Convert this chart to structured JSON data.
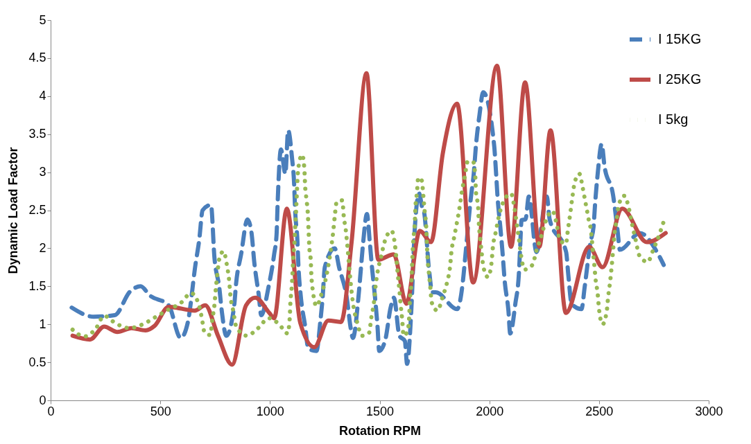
{
  "chart_data": {
    "type": "line",
    "xlabel": "Rotation RPM",
    "ylabel": "Dynamic Load Factor",
    "xlim": [
      0,
      3000
    ],
    "xticks": [
      0,
      500,
      1000,
      1500,
      2000,
      2500,
      3000
    ],
    "ylim": [
      0,
      5
    ],
    "yticks": [
      0,
      0.5,
      1,
      1.5,
      2,
      2.5,
      3,
      3.5,
      4,
      4.5,
      5
    ],
    "grid": false,
    "legend": "top right",
    "series": [
      {
        "name": "I 15KG",
        "color": "#4a7ebb",
        "line_style": "dashed",
        "x": [
          96,
          196,
          292,
          362,
          410,
          452,
          538,
          593,
          625,
          661,
          677,
          693,
          731,
          747,
          769,
          780,
          801,
          837,
          845,
          869,
          897,
          915,
          929,
          949,
          960,
          994,
          1019,
          1030,
          1035,
          1050,
          1070,
          1083,
          1100,
          1110,
          1115,
          1125,
          1130,
          1140,
          1160,
          1175,
          1212,
          1230,
          1240,
          1250,
          1295,
          1315,
          1350,
          1368,
          1378,
          1404,
          1415,
          1425,
          1442,
          1455,
          1465,
          1478,
          1490,
          1498,
          1526,
          1550,
          1565,
          1590,
          1615,
          1625,
          1644,
          1660,
          1680,
          1695,
          1702,
          1725,
          1740,
          1756,
          1853,
          1880,
          1890,
          1918,
          1928,
          1939,
          1955,
          1972,
          2022,
          2030,
          2038,
          2050,
          2060,
          2070,
          2087,
          2095,
          2119,
          2135,
          2140,
          2147,
          2165,
          2180,
          2215,
          2262,
          2275,
          2350,
          2360,
          2375,
          2420,
          2435,
          2461,
          2475,
          2482,
          2494,
          2512,
          2525,
          2564,
          2585,
          2595,
          2686,
          2770,
          2795
        ],
        "values": [
          1.22,
          1.1,
          1.12,
          1.43,
          1.5,
          1.38,
          1.25,
          0.82,
          1.02,
          1.8,
          2.1,
          2.5,
          2.57,
          1.87,
          1.48,
          1.18,
          0.85,
          1.25,
          1.52,
          1.93,
          2.38,
          2.22,
          1.8,
          1.38,
          1.12,
          1.5,
          1.92,
          2.18,
          2.6,
          3.3,
          2.98,
          3.55,
          3.2,
          2.85,
          2.48,
          2.1,
          1.75,
          1.38,
          0.98,
          0.68,
          0.65,
          1.05,
          1.35,
          1.75,
          2.0,
          1.75,
          1.35,
          0.95,
          0.82,
          1.38,
          1.75,
          2.08,
          2.45,
          2.08,
          1.75,
          1.38,
          0.98,
          0.65,
          0.8,
          1.22,
          1.35,
          0.85,
          0.78,
          0.48,
          1.17,
          2.25,
          2.72,
          2.52,
          2.48,
          1.72,
          1.42,
          1.42,
          1.2,
          1.58,
          1.88,
          2.72,
          2.95,
          3.35,
          3.75,
          4.05,
          3.35,
          3.02,
          2.65,
          2.28,
          1.95,
          1.57,
          1.18,
          0.88,
          1.28,
          1.68,
          1.98,
          2.37,
          2.38,
          2.68,
          1.95,
          2.68,
          2.38,
          1.95,
          1.65,
          1.27,
          1.2,
          1.5,
          2.08,
          2.28,
          2.58,
          2.98,
          3.37,
          3.08,
          2.7,
          2.22,
          1.98,
          2.2,
          1.92,
          1.78
        ]
      },
      {
        "name": "I 25KG",
        "color": "#be4b48",
        "line_style": "solid",
        "x": [
          100,
          180,
          244,
          304,
          369,
          433,
          474,
          538,
          657,
          705,
          763,
          827,
          891,
          933,
          997,
          1019,
          1077,
          1138,
          1202,
          1266,
          1324,
          1372,
          1440,
          1494,
          1564,
          1622,
          1683,
          1734,
          1788,
          1853,
          1926,
          2035,
          2099,
          2163,
          2228,
          2279,
          2349,
          2455,
          2516,
          2606,
          2718,
          2804
        ],
        "values": [
          0.85,
          0.8,
          0.97,
          0.9,
          0.95,
          0.92,
          0.98,
          1.23,
          1.18,
          1.25,
          0.85,
          0.47,
          1.25,
          1.35,
          1.15,
          1.08,
          2.52,
          1.02,
          0.7,
          1.05,
          1.03,
          2.08,
          4.3,
          1.85,
          1.92,
          1.27,
          2.23,
          2.08,
          3.25,
          3.9,
          1.55,
          4.4,
          2.02,
          4.18,
          2.02,
          3.55,
          1.15,
          2.02,
          1.75,
          2.52,
          2.08,
          2.2
        ]
      },
      {
        "name": "I 5kg",
        "color": "#98b954",
        "line_style": "dotted",
        "x": [
          100,
          154,
          205,
          244,
          298,
          359,
          420,
          481,
          535,
          593,
          641,
          673,
          689,
          702,
          728,
          737,
          747,
          753,
          760,
          769,
          788,
          804,
          814,
          820,
          833,
          846,
          894,
          946,
          994,
          1042,
          1080,
          1090,
          1093,
          1099,
          1103,
          1106,
          1112,
          1115,
          1119,
          1122,
          1125,
          1131,
          1147,
          1157,
          1160,
          1167,
          1173,
          1176,
          1179,
          1186,
          1189,
          1196,
          1212,
          1237,
          1256,
          1269,
          1279,
          1288,
          1295,
          1304,
          1330,
          1336,
          1346,
          1353,
          1359,
          1365,
          1372,
          1381,
          1397,
          1420,
          1452,
          1462,
          1474,
          1481,
          1490,
          1506,
          1522,
          1554,
          1570,
          1577,
          1583,
          1590,
          1596,
          1603,
          1609,
          1628,
          1635,
          1638,
          1644,
          1647,
          1650,
          1654,
          1660,
          1663,
          1670,
          1676,
          1692,
          1699,
          1705,
          1712,
          1715,
          1718,
          1724,
          1731,
          1737,
          1763,
          1788,
          1808,
          1821,
          1827,
          1840,
          1853,
          1865,
          1875,
          1888,
          1901,
          1926,
          1936,
          1939,
          1949,
          1952,
          1958,
          1965,
          1974,
          1994,
          2010,
          2016,
          2029,
          2042,
          2061,
          2099,
          2115,
          2125,
          2135,
          2144,
          2160,
          2196,
          2215,
          2237,
          2256,
          2288,
          2308,
          2321,
          2349,
          2359,
          2369,
          2378,
          2388,
          2410,
          2426,
          2439,
          2452,
          2465,
          2471,
          2478,
          2484,
          2494,
          2500,
          2516,
          2535,
          2542,
          2551,
          2558,
          2564,
          2570,
          2580,
          2590,
          2615,
          2638,
          2651,
          2667,
          2683,
          2721,
          2750,
          2776,
          2798
        ],
        "values": [
          0.93,
          0.84,
          0.94,
          1.11,
          1.01,
          0.95,
          1.0,
          1.1,
          1.19,
          1.28,
          1.41,
          1.28,
          1.09,
          0.89,
          0.86,
          1.06,
          1.26,
          1.46,
          1.66,
          1.86,
          1.96,
          1.77,
          1.57,
          1.37,
          1.17,
          0.97,
          0.85,
          0.95,
          1.08,
          1.0,
          0.88,
          1.08,
          1.28,
          1.48,
          1.68,
          1.88,
          2.09,
          2.29,
          2.49,
          2.69,
          2.89,
          3.09,
          3.23,
          3.03,
          2.83,
          2.63,
          2.43,
          2.23,
          2.03,
          1.83,
          1.63,
          1.43,
          1.24,
          1.42,
          1.62,
          1.82,
          2.01,
          2.21,
          2.41,
          2.61,
          2.63,
          2.43,
          2.23,
          2.03,
          1.83,
          1.63,
          1.43,
          1.23,
          1.03,
          0.85,
          0.89,
          1.09,
          1.29,
          1.49,
          1.68,
          1.88,
          2.08,
          2.23,
          2.04,
          1.84,
          1.65,
          1.45,
          1.25,
          1.05,
          0.85,
          0.92,
          1.12,
          1.32,
          1.52,
          1.72,
          1.92,
          2.12,
          2.32,
          2.53,
          2.73,
          2.93,
          2.89,
          2.69,
          2.49,
          2.29,
          2.09,
          1.89,
          1.69,
          1.49,
          1.29,
          1.18,
          1.37,
          1.56,
          1.76,
          1.95,
          2.15,
          2.35,
          2.55,
          2.75,
          2.94,
          3.14,
          3.14,
          2.94,
          2.74,
          2.54,
          2.34,
          2.14,
          1.94,
          1.74,
          1.62,
          1.81,
          2.01,
          2.21,
          2.4,
          2.59,
          2.72,
          2.52,
          2.32,
          2.12,
          1.92,
          1.72,
          1.78,
          1.97,
          2.16,
          2.35,
          2.49,
          2.3,
          2.11,
          2.06,
          2.26,
          2.46,
          2.66,
          2.85,
          2.98,
          2.79,
          2.59,
          2.39,
          2.19,
          1.99,
          1.8,
          1.6,
          1.4,
          1.2,
          1.0,
          1.17,
          1.37,
          1.57,
          1.77,
          1.97,
          2.17,
          2.37,
          2.57,
          2.69,
          2.5,
          2.31,
          2.11,
          1.91,
          1.82,
          2.0,
          2.19,
          2.38
        ]
      }
    ]
  }
}
